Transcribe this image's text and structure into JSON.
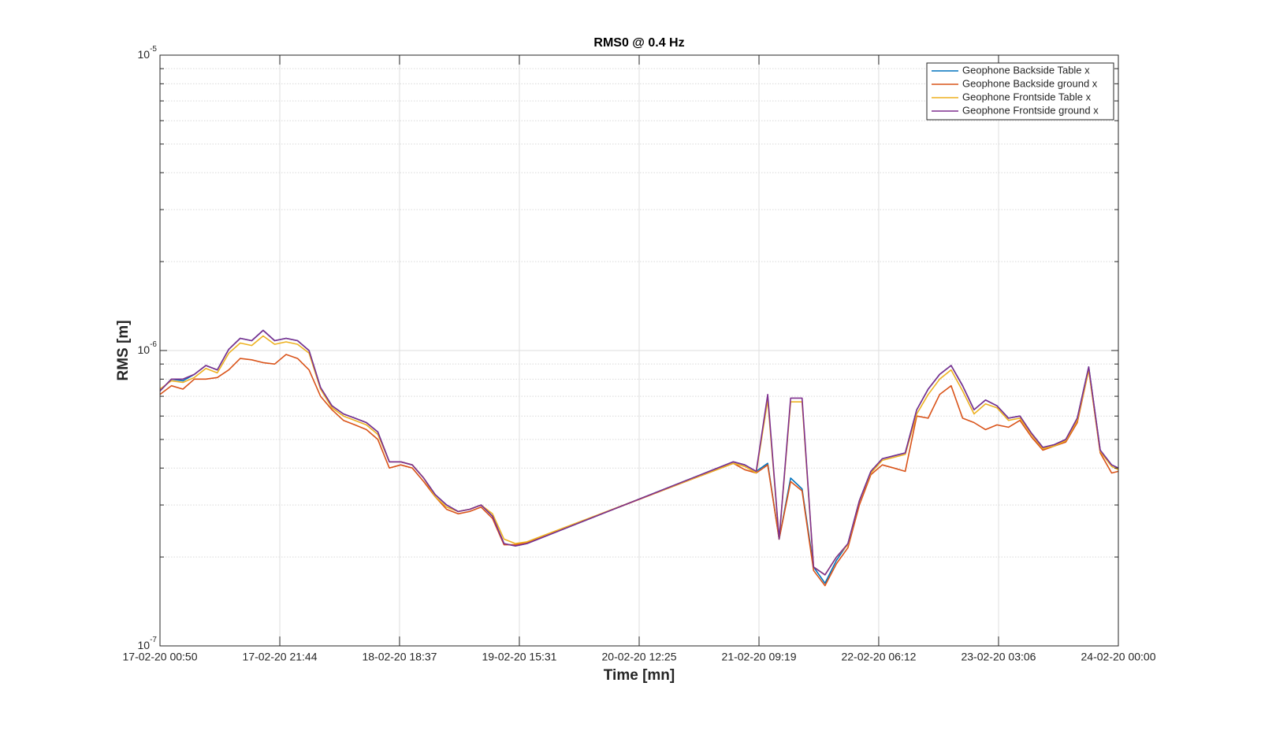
{
  "chart_data": {
    "type": "line",
    "title": "RMS0 @ 0.4 Hz",
    "xlabel": "Time [mn]",
    "ylabel": "RMS [m]",
    "ylog": true,
    "grid": true,
    "minor_grid": true,
    "legend": "upper right",
    "xlim": [
      "17-02-20 00:50",
      "24-02-20 00:00"
    ],
    "xticks": [
      "17-02-20 00:50",
      "17-02-20 21:44",
      "18-02-20 18:37",
      "19-02-20 15:31",
      "20-02-20 12:25",
      "21-02-20 09:19",
      "22-02-20 06:12",
      "23-02-20 03:06",
      "24-02-20 00:00"
    ],
    "ylim": [
      1e-07,
      1e-05
    ],
    "yticks": [
      {
        "value": 1e-07,
        "label": "10^-7"
      },
      {
        "value": 1e-06,
        "label": "10^-6"
      },
      {
        "value": 1e-05,
        "label": "10^-5"
      }
    ],
    "x": [
      "17-02-20 00:50",
      "17-02-20 02:50",
      "17-02-20 04:50",
      "17-02-20 06:50",
      "17-02-20 08:50",
      "17-02-20 10:50",
      "17-02-20 12:50",
      "17-02-20 14:50",
      "17-02-20 16:50",
      "17-02-20 18:50",
      "17-02-20 20:50",
      "17-02-20 22:50",
      "18-02-20 00:50",
      "18-02-20 02:50",
      "18-02-20 04:50",
      "18-02-20 06:50",
      "18-02-20 08:50",
      "18-02-20 10:50",
      "18-02-20 12:50",
      "18-02-20 14:50",
      "18-02-20 16:50",
      "18-02-20 18:50",
      "18-02-20 20:50",
      "18-02-20 22:50",
      "19-02-20 00:50",
      "19-02-20 02:50",
      "19-02-20 04:50",
      "19-02-20 06:50",
      "19-02-20 08:50",
      "19-02-20 10:50",
      "19-02-20 12:50",
      "19-02-20 14:50",
      "19-02-20 16:50",
      "21-02-20 04:50",
      "21-02-20 06:50",
      "21-02-20 08:50",
      "21-02-20 10:50",
      "21-02-20 12:50",
      "21-02-20 14:50",
      "21-02-20 16:50",
      "21-02-20 18:50",
      "21-02-20 20:50",
      "21-02-20 22:50",
      "22-02-20 00:50",
      "22-02-20 02:50",
      "22-02-20 04:50",
      "22-02-20 06:50",
      "22-02-20 08:50",
      "22-02-20 10:50",
      "22-02-20 12:50",
      "22-02-20 14:50",
      "22-02-20 16:50",
      "22-02-20 18:50",
      "22-02-20 20:50",
      "22-02-20 22:50",
      "23-02-20 00:50",
      "23-02-20 02:50",
      "23-02-20 04:50",
      "23-02-20 06:50",
      "23-02-20 08:50",
      "23-02-20 10:50",
      "23-02-20 12:50",
      "23-02-20 14:50",
      "23-02-20 16:50",
      "23-02-20 18:50",
      "23-02-20 20:50",
      "23-02-20 22:50",
      "24-02-20 00:00"
    ],
    "series": [
      {
        "name": "Geophone Backside Table x",
        "color": "#0072BD",
        "values": [
          7.3e-07,
          8e-07,
          7.9e-07,
          8.3e-07,
          8.9e-07,
          8.6e-07,
          1.01e-06,
          1.1e-06,
          1.08e-06,
          1.17e-06,
          1.08e-06,
          1.1e-06,
          1.08e-06,
          1e-06,
          7.5e-07,
          6.5e-07,
          6.1e-07,
          5.9e-07,
          5.7e-07,
          5.3e-07,
          4.2e-07,
          4.2e-07,
          4.1e-07,
          3.7e-07,
          3.25e-07,
          3e-07,
          2.85e-07,
          2.9e-07,
          3e-07,
          2.75e-07,
          2.22e-07,
          2.18e-07,
          2.22e-07,
          4.2e-07,
          4.1e-07,
          3.9e-07,
          4.15e-07,
          2.3e-07,
          3.7e-07,
          3.4e-07,
          1.85e-07,
          1.63e-07,
          1.95e-07,
          2.22e-07,
          3.1e-07,
          3.9e-07,
          4.3e-07,
          4.4e-07,
          4.5e-07,
          6.3e-07,
          7.4e-07,
          8.3e-07,
          8.9e-07,
          7.6e-07,
          6.3e-07,
          6.8e-07,
          6.5e-07,
          5.9e-07,
          6e-07,
          5.25e-07,
          4.7e-07,
          4.8e-07,
          5e-07,
          5.9e-07,
          8.8e-07,
          4.6e-07,
          4.1e-07,
          4e-07
        ]
      },
      {
        "name": "Geophone Backside ground x",
        "color": "#D95319",
        "values": [
          7.1e-07,
          7.6e-07,
          7.4e-07,
          8e-07,
          8e-07,
          8.1e-07,
          8.6e-07,
          9.4e-07,
          9.3e-07,
          9.1e-07,
          9e-07,
          9.7e-07,
          9.4e-07,
          8.6e-07,
          7e-07,
          6.3e-07,
          5.8e-07,
          5.6e-07,
          5.4e-07,
          5e-07,
          4e-07,
          4.1e-07,
          4e-07,
          3.6e-07,
          3.2e-07,
          2.9e-07,
          2.8e-07,
          2.85e-07,
          2.95e-07,
          2.7e-07,
          2.2e-07,
          2.2e-07,
          2.24e-07,
          4.15e-07,
          3.95e-07,
          3.85e-07,
          4.1e-07,
          2.3e-07,
          3.6e-07,
          3.35e-07,
          1.8e-07,
          1.6e-07,
          1.9e-07,
          2.15e-07,
          3e-07,
          3.8e-07,
          4.1e-07,
          4e-07,
          3.9e-07,
          6e-07,
          5.9e-07,
          7.1e-07,
          7.6e-07,
          5.9e-07,
          5.7e-07,
          5.4e-07,
          5.6e-07,
          5.5e-07,
          5.8e-07,
          5.1e-07,
          4.6e-07,
          4.75e-07,
          4.9e-07,
          5.7e-07,
          8.6e-07,
          4.5e-07,
          3.85e-07,
          3.9e-07
        ]
      },
      {
        "name": "Geophone Frontside Table x",
        "color": "#EDB120",
        "values": [
          7.4e-07,
          7.9e-07,
          7.8e-07,
          8.1e-07,
          8.7e-07,
          8.4e-07,
          9.8e-07,
          1.06e-06,
          1.04e-06,
          1.12e-06,
          1.05e-06,
          1.07e-06,
          1.05e-06,
          9.8e-07,
          7.4e-07,
          6.4e-07,
          6e-07,
          5.8e-07,
          5.6e-07,
          5.2e-07,
          4.2e-07,
          4.2e-07,
          4.1e-07,
          3.7e-07,
          3.2e-07,
          2.95e-07,
          2.85e-07,
          2.9e-07,
          3e-07,
          2.8e-07,
          2.3e-07,
          2.22e-07,
          2.25e-07,
          4.15e-07,
          4.05e-07,
          3.85e-07,
          6.8e-07,
          2.3e-07,
          6.7e-07,
          6.7e-07,
          1.85e-07,
          1.74e-07,
          2e-07,
          2.2e-07,
          3.1e-07,
          3.85e-07,
          4.25e-07,
          4.35e-07,
          4.45e-07,
          6.1e-07,
          7.1e-07,
          8e-07,
          8.6e-07,
          7.3e-07,
          6.1e-07,
          6.6e-07,
          6.4e-07,
          5.8e-07,
          5.9e-07,
          5.2e-07,
          4.65e-07,
          4.75e-07,
          4.95e-07,
          5.8e-07,
          8.6e-07,
          4.55e-07,
          4.05e-07,
          3.95e-07
        ]
      },
      {
        "name": "Geophone Frontside ground x",
        "color": "#7E2F8E",
        "values": [
          7.3e-07,
          8e-07,
          8e-07,
          8.3e-07,
          8.9e-07,
          8.6e-07,
          1.01e-06,
          1.1e-06,
          1.08e-06,
          1.17e-06,
          1.08e-06,
          1.1e-06,
          1.08e-06,
          1e-06,
          7.5e-07,
          6.5e-07,
          6.1e-07,
          5.9e-07,
          5.7e-07,
          5.3e-07,
          4.2e-07,
          4.2e-07,
          4.1e-07,
          3.7e-07,
          3.25e-07,
          3e-07,
          2.85e-07,
          2.9e-07,
          3e-07,
          2.75e-07,
          2.22e-07,
          2.18e-07,
          2.22e-07,
          4.2e-07,
          4.1e-07,
          3.9e-07,
          7.1e-07,
          2.3e-07,
          6.9e-07,
          6.9e-07,
          1.85e-07,
          1.74e-07,
          2e-07,
          2.22e-07,
          3.1e-07,
          3.9e-07,
          4.3e-07,
          4.4e-07,
          4.5e-07,
          6.3e-07,
          7.4e-07,
          8.3e-07,
          8.9e-07,
          7.6e-07,
          6.3e-07,
          6.8e-07,
          6.5e-07,
          5.9e-07,
          6e-07,
          5.25e-07,
          4.7e-07,
          4.8e-07,
          5e-07,
          5.9e-07,
          8.8e-07,
          4.6e-07,
          4.1e-07,
          4e-07
        ]
      }
    ]
  }
}
